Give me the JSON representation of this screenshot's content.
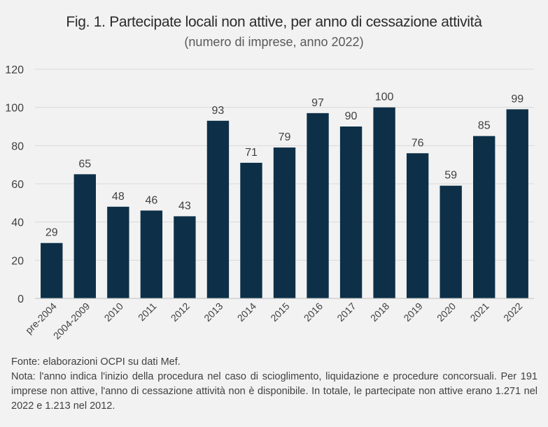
{
  "chart_data": {
    "type": "bar",
    "title": "Fig. 1. Partecipate locali non attive, per anno di cessazione attività",
    "subtitle": "(numero di imprese, anno 2022)",
    "categories": [
      "pre-2004",
      "2004-2009",
      "2010",
      "2011",
      "2012",
      "2013",
      "2014",
      "2015",
      "2016",
      "2017",
      "2018",
      "2019",
      "2020",
      "2021",
      "2022"
    ],
    "values": [
      29,
      65,
      48,
      46,
      43,
      93,
      71,
      79,
      97,
      90,
      100,
      76,
      59,
      85,
      99
    ],
    "yticks": [
      0,
      20,
      40,
      60,
      80,
      100,
      120
    ],
    "ylim": [
      0,
      120
    ],
    "xlabel": "",
    "ylabel": "",
    "grid": "horizontal",
    "legend": "none",
    "bar_color": "#0d3048",
    "grid_color": "#d9d9d9"
  },
  "footer": {
    "source": "Fonte: elaborazioni OCPI su dati Mef.",
    "note": "Nota: l'anno indica l'inizio della procedura nel caso di scioglimento, liquidazione e procedure concorsuali. Per 191 imprese non attive, l'anno di cessazione attività non è disponibile. In totale, le partecipate non attive erano 1.271 nel 2022 e 1.213 nel 2012."
  }
}
